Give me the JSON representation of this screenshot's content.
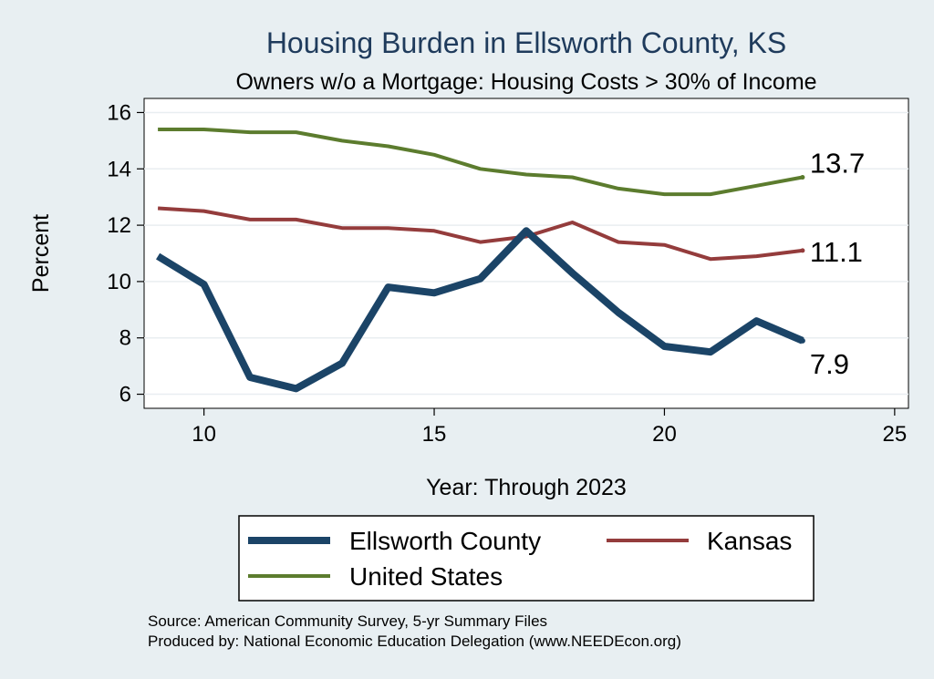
{
  "chart_data": {
    "type": "line",
    "title": "Housing Burden in Ellsworth County, KS",
    "subtitle": "Owners w/o a Mortgage: Housing Costs > 30% of Income",
    "xlabel": "Year: Through 2023",
    "ylabel": "Percent",
    "xlim": [
      8.7,
      25.3
    ],
    "ylim": [
      5.5,
      16.5
    ],
    "xticks": [
      10,
      15,
      20,
      25
    ],
    "yticks": [
      6,
      8,
      10,
      12,
      14,
      16
    ],
    "grid": true,
    "x": [
      9,
      10,
      11,
      12,
      13,
      14,
      15,
      16,
      17,
      18,
      19,
      20,
      21,
      22,
      23
    ],
    "series": [
      {
        "name": "Ellsworth County",
        "color": "#1b4467",
        "values": [
          10.9,
          9.9,
          6.6,
          6.2,
          7.1,
          9.8,
          9.6,
          10.1,
          11.8,
          10.3,
          8.9,
          7.7,
          7.5,
          8.6,
          7.9
        ],
        "end_label": "7.9"
      },
      {
        "name": "Kansas",
        "color": "#943c3c",
        "values": [
          12.6,
          12.5,
          12.2,
          12.2,
          11.9,
          11.9,
          11.8,
          11.4,
          11.6,
          12.1,
          11.4,
          11.3,
          10.8,
          10.9,
          11.1
        ],
        "end_label": "11.1"
      },
      {
        "name": "United States",
        "color": "#5c7c2e",
        "values": [
          15.4,
          15.4,
          15.3,
          15.3,
          15.0,
          14.8,
          14.5,
          14.0,
          13.8,
          13.7,
          13.3,
          13.1,
          13.1,
          13.4,
          13.7
        ],
        "end_label": "13.7"
      }
    ],
    "legend": [
      "Ellsworth County",
      "Kansas",
      "United States"
    ],
    "legend_position": "bottom",
    "notes": [
      "Source: American Community Survey, 5-yr Summary Files",
      "Produced by: National Economic Education Delegation (www.NEEDEcon.org)"
    ]
  }
}
